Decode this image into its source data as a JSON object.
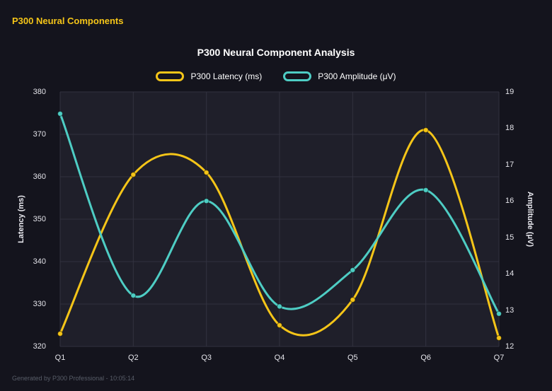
{
  "header": {
    "title": "P300 Neural Components"
  },
  "footer": {
    "text": "Generated by P300 Professional - 10:05:14"
  },
  "theme": {
    "background": "#14141d",
    "plot_background": "#1f1f2a",
    "grid_color": "#32323f",
    "accent_yellow": "#f5c518",
    "accent_teal": "#4ecdc4"
  },
  "chart_data": {
    "type": "line",
    "title": "P300 Neural Component Analysis",
    "categories": [
      "Q1",
      "Q2",
      "Q3",
      "Q4",
      "Q5",
      "Q6",
      "Q7"
    ],
    "series": [
      {
        "name": "P300 Latency (ms)",
        "color": "#f5c518",
        "axis": "left",
        "values": [
          323,
          360.5,
          361,
          325,
          331,
          371,
          322
        ]
      },
      {
        "name": "P300 Amplitude (μV)",
        "color": "#4ecdc4",
        "axis": "right",
        "values": [
          18.4,
          13.4,
          16.0,
          13.1,
          14.1,
          16.3,
          12.9
        ]
      }
    ],
    "left_axis": {
      "label": "Latency (ms)",
      "min": 320,
      "max": 380,
      "step": 10
    },
    "right_axis": {
      "label": "Amplitude (μV)",
      "min": 12,
      "max": 19,
      "step": 1
    },
    "grid": true,
    "legend_position": "top",
    "curve": "smooth"
  }
}
